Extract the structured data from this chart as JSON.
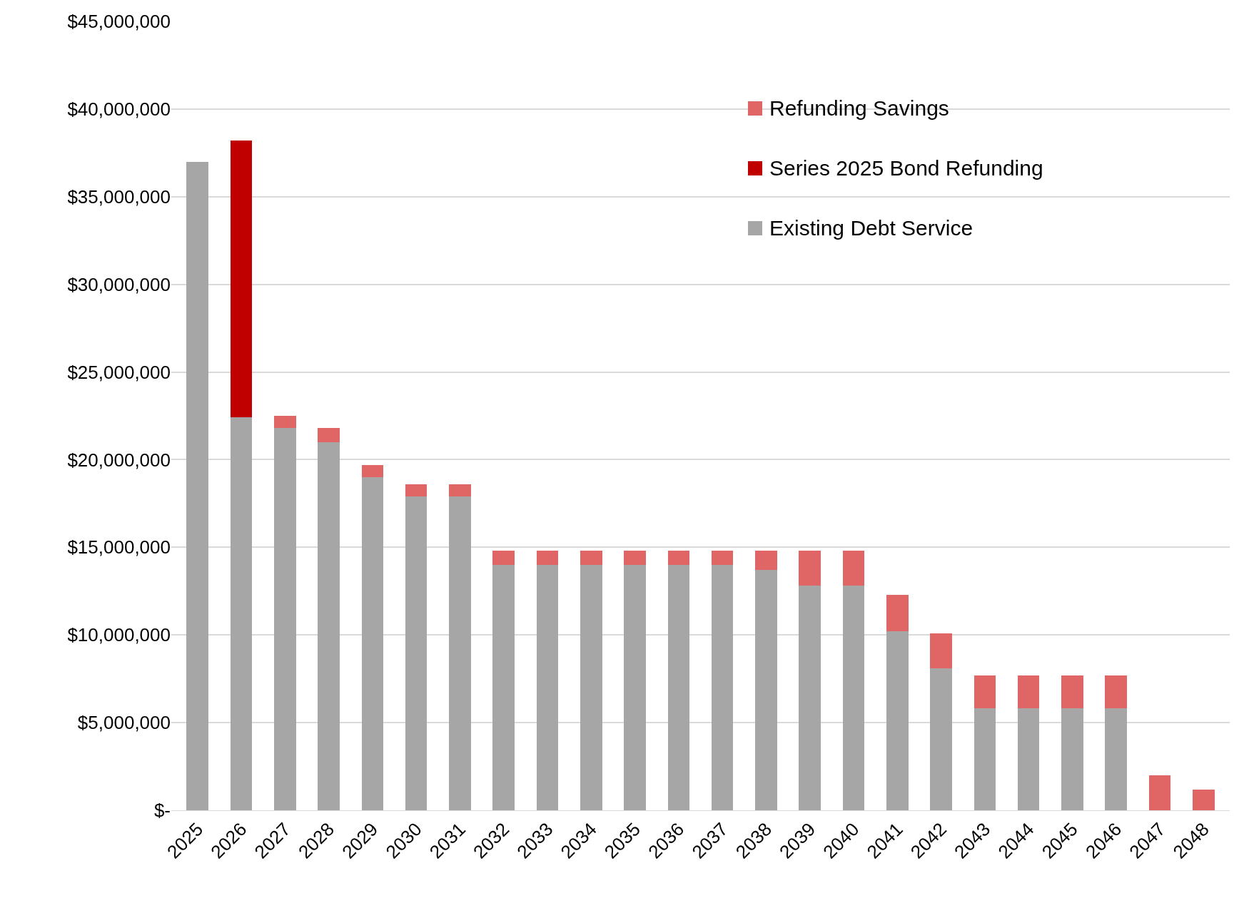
{
  "chart_data": {
    "type": "bar",
    "stacked": true,
    "categories": [
      "2025",
      "2026",
      "2027",
      "2028",
      "2029",
      "2030",
      "2031",
      "2032",
      "2033",
      "2034",
      "2035",
      "2036",
      "2037",
      "2038",
      "2039",
      "2040",
      "2041",
      "2042",
      "2043",
      "2044",
      "2045",
      "2046",
      "2047",
      "2048"
    ],
    "series": [
      {
        "name": "Existing Debt Service",
        "color": "#a6a6a6",
        "values": [
          37000000,
          22400000,
          21800000,
          21000000,
          19000000,
          17900000,
          17900000,
          14000000,
          14000000,
          14000000,
          14000000,
          14000000,
          14000000,
          13700000,
          12800000,
          12800000,
          10200000,
          8100000,
          5800000,
          5800000,
          5800000,
          5800000,
          0,
          0
        ]
      },
      {
        "name": "Series 2025 Bond Refunding",
        "color": "#c00000",
        "values": [
          0,
          15800000,
          0,
          0,
          0,
          0,
          0,
          0,
          0,
          0,
          0,
          0,
          0,
          0,
          0,
          0,
          0,
          0,
          0,
          0,
          0,
          0,
          0,
          0
        ]
      },
      {
        "name": "Refunding Savings",
        "color": "#e06666",
        "values": [
          0,
          0,
          700000,
          800000,
          700000,
          700000,
          700000,
          800000,
          800000,
          800000,
          800000,
          800000,
          800000,
          1100000,
          2000000,
          2000000,
          2100000,
          2000000,
          1900000,
          1900000,
          1900000,
          1900000,
          2000000,
          1200000
        ]
      }
    ],
    "ylim": [
      0,
      45000000
    ],
    "yticks": [
      {
        "value": 0,
        "label": "$-"
      },
      {
        "value": 5000000,
        "label": "$5,000,000"
      },
      {
        "value": 10000000,
        "label": "$10,000,000"
      },
      {
        "value": 15000000,
        "label": "$15,000,000"
      },
      {
        "value": 20000000,
        "label": "$20,000,000"
      },
      {
        "value": 25000000,
        "label": "$25,000,000"
      },
      {
        "value": 30000000,
        "label": "$30,000,000"
      },
      {
        "value": 35000000,
        "label": "$35,000,000"
      },
      {
        "value": 40000000,
        "label": "$40,000,000"
      },
      {
        "value": 45000000,
        "label": "$45,000,000"
      }
    ],
    "grid": "y",
    "legend": "top right"
  }
}
